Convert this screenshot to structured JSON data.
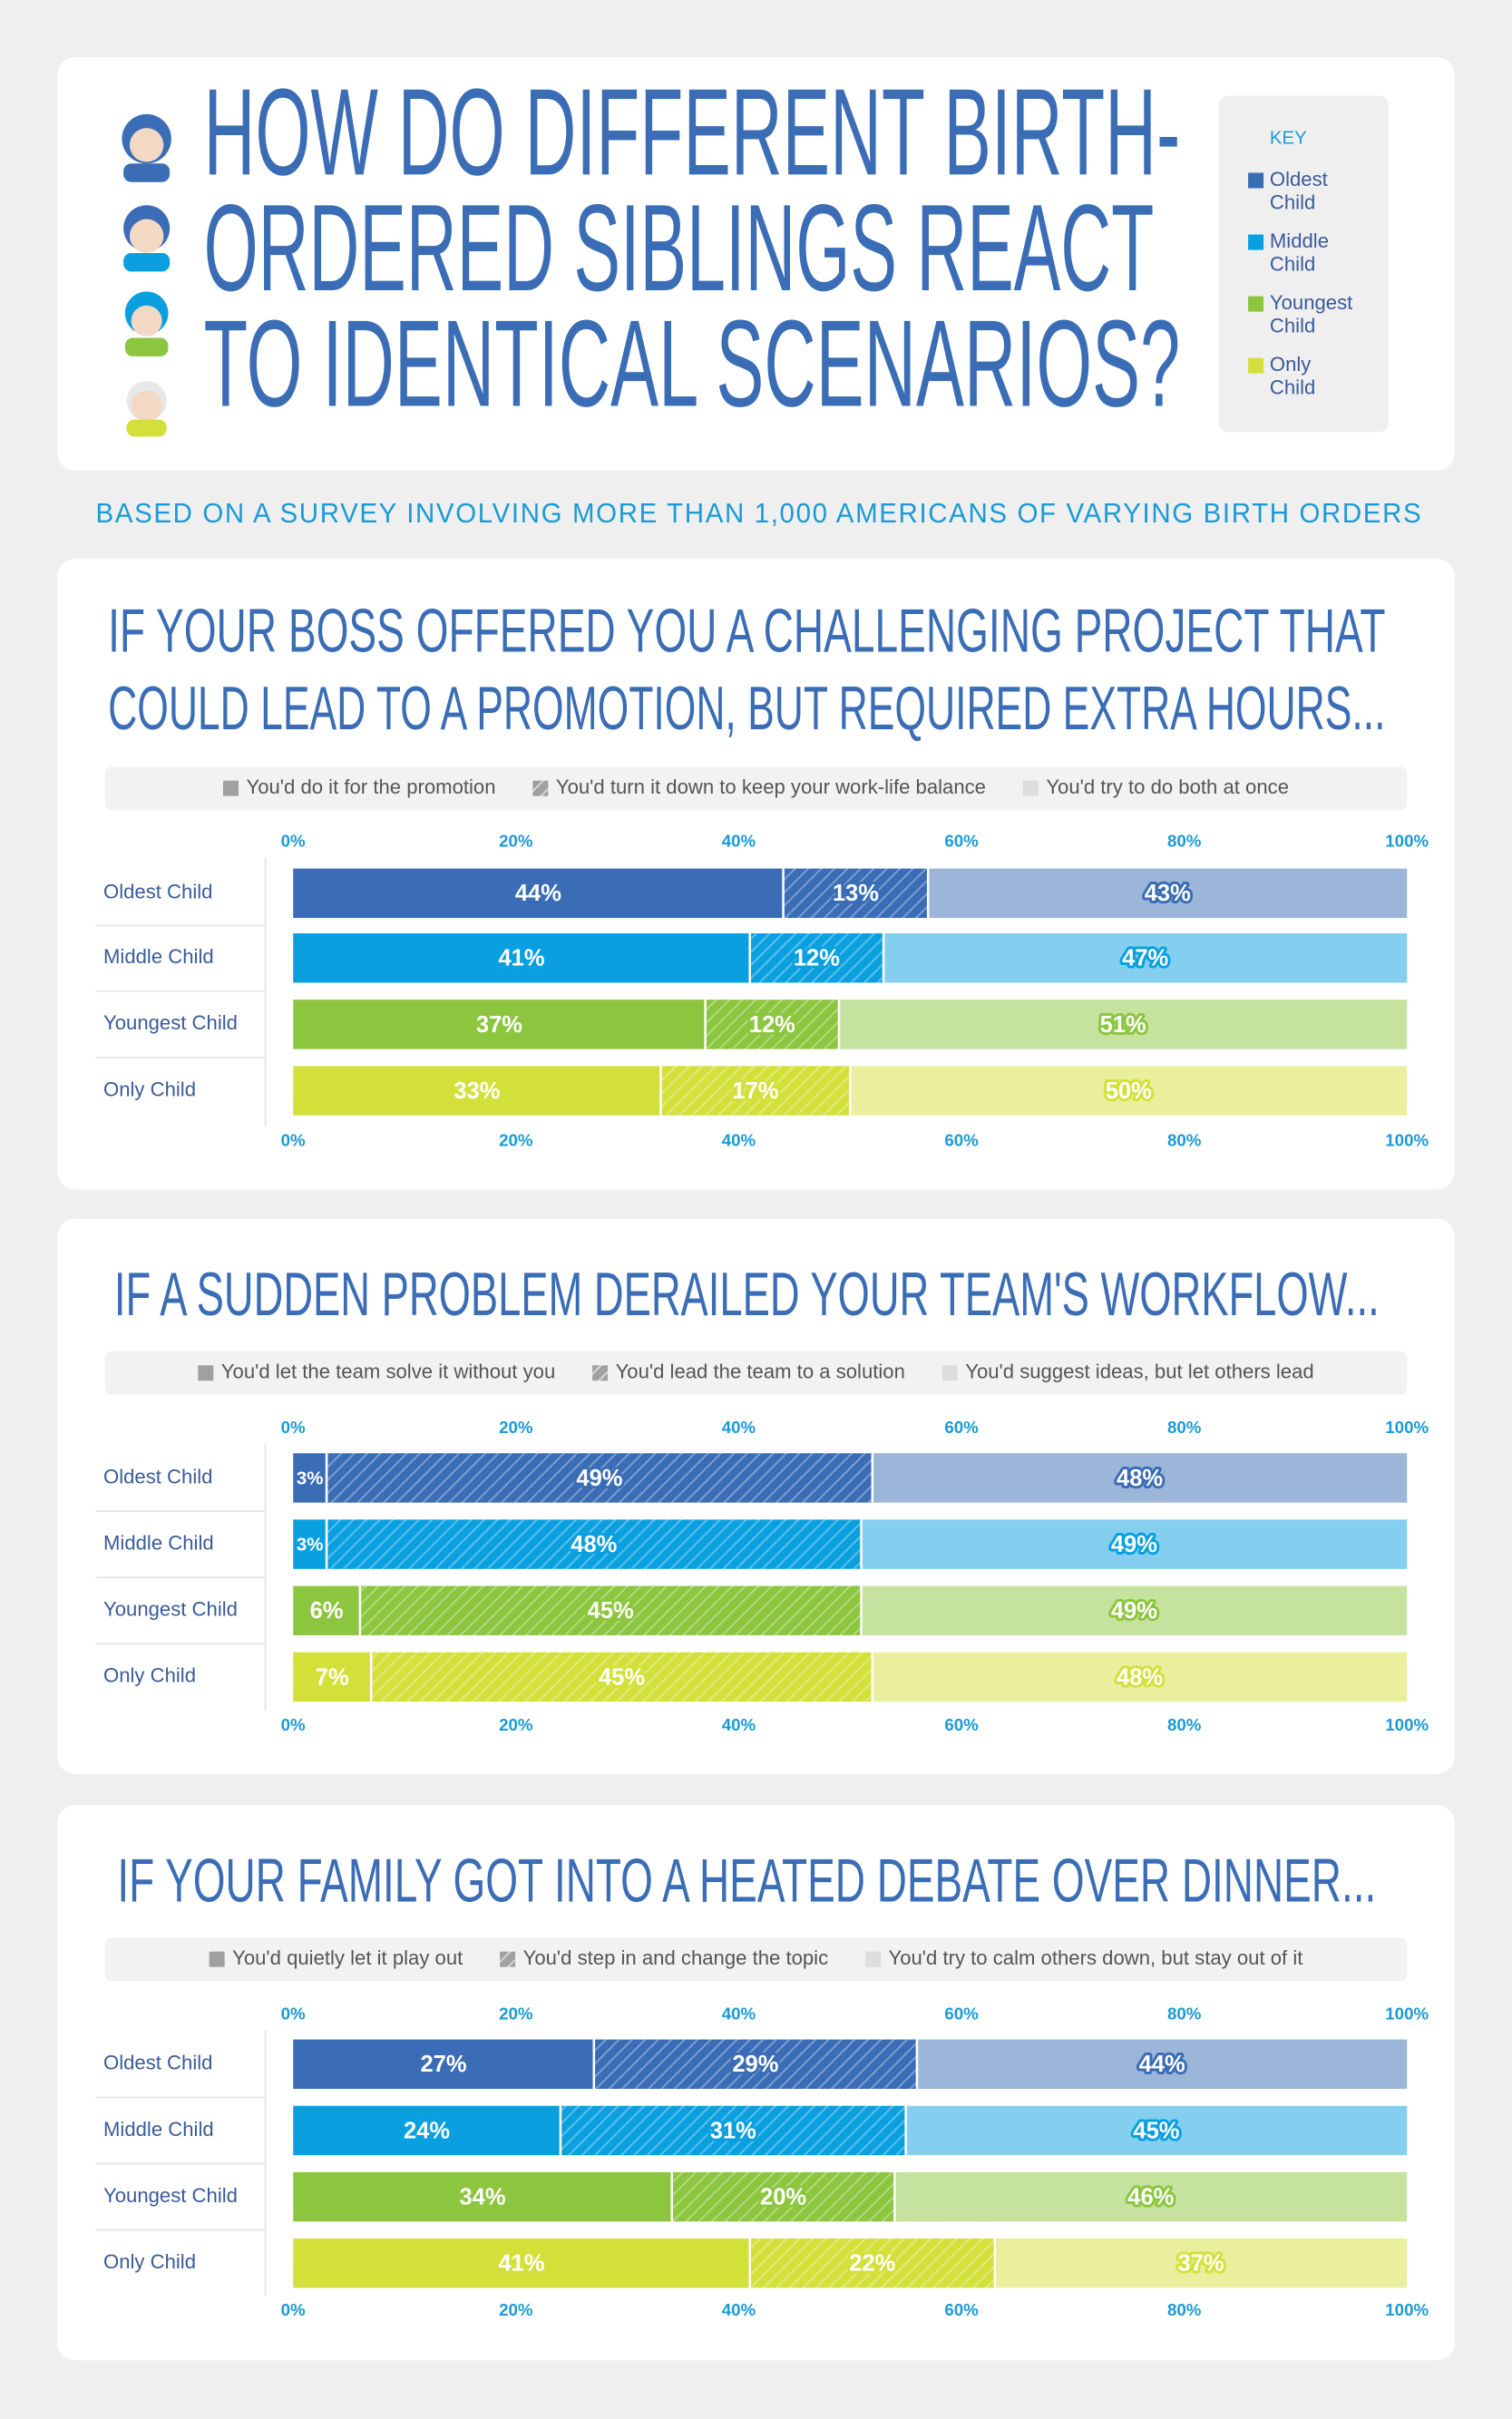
{
  "header": {
    "title": [
      "HOW DO DIFFERENT BIRTH-",
      "ORDERED SIBLINGS REACT",
      "TO IDENTICAL SCENARIOS?"
    ],
    "key_title": "KEY",
    "key": [
      {
        "lines": [
          "Oldest",
          "Child"
        ],
        "color": "#3a6db5"
      },
      {
        "lines": [
          "Middle",
          "Child"
        ],
        "color": "#0aa0e0"
      },
      {
        "lines": [
          "Youngest",
          "Child"
        ],
        "color": "#8cc63f"
      },
      {
        "lines": [
          "Only",
          "Child"
        ],
        "color": "#d4e03a"
      }
    ],
    "subtitle": "BASED ON A SURVEY INVOLVING MORE THAN 1,000 AMERICANS OF VARYING BIRTH ORDERS"
  },
  "chart_data": [
    {
      "type": "bar",
      "stacked": true,
      "orientation": "horizontal",
      "title": [
        "IF YOUR BOSS OFFERED YOU A CHALLENGING PROJECT THAT",
        "COULD LEAD TO A PROMOTION, BUT REQUIRED EXTRA HOURS..."
      ],
      "categories": [
        "Oldest Child",
        "Middle Child",
        "Youngest Child",
        "Only Child"
      ],
      "category_colors": [
        "#3a6db5",
        "#0aa0e0",
        "#8cc63f",
        "#d4e03a"
      ],
      "series": [
        {
          "name": "You'd do it for the promotion",
          "style": "solid",
          "color": "#a0a0a0",
          "values": [
            44,
            41,
            37,
            33
          ],
          "value_labels": [
            "44%",
            "41%",
            "37%",
            "33%"
          ]
        },
        {
          "name": "You'd turn it down to keep your work-life balance",
          "style": "hatch",
          "color": "#a0a0a0",
          "values": [
            13,
            12,
            12,
            17
          ],
          "value_labels": [
            "13%",
            "12%",
            "12%",
            "17%"
          ]
        },
        {
          "name": "You'd try to do both at once",
          "style": "light",
          "color": "#dddddd",
          "values": [
            43,
            47,
            51,
            50
          ],
          "value_labels": [
            "43%",
            "47%",
            "51%",
            "50%"
          ]
        }
      ],
      "xlim": [
        0,
        100
      ],
      "xticks": [
        {
          "value": 0,
          "label": "0%"
        },
        {
          "value": 20,
          "label": "20%"
        },
        {
          "value": 40,
          "label": "40%"
        },
        {
          "value": 60,
          "label": "60%"
        },
        {
          "value": 80,
          "label": "80%"
        },
        {
          "value": 100,
          "label": "100%"
        }
      ]
    },
    {
      "type": "bar",
      "stacked": true,
      "orientation": "horizontal",
      "title": [
        "IF A SUDDEN PROBLEM DERAILED YOUR TEAM'S WORKFLOW..."
      ],
      "categories": [
        "Oldest Child",
        "Middle Child",
        "Youngest Child",
        "Only Child"
      ],
      "category_colors": [
        "#3a6db5",
        "#0aa0e0",
        "#8cc63f",
        "#d4e03a"
      ],
      "series": [
        {
          "name": "You'd let the team solve it without you",
          "style": "solid",
          "color": "#a0a0a0",
          "values": [
            3,
            3,
            6,
            7
          ],
          "value_labels": [
            "3%",
            "3%",
            "6%",
            "7%"
          ]
        },
        {
          "name": "You'd lead the team to a solution",
          "style": "hatch",
          "color": "#a0a0a0",
          "values": [
            49,
            48,
            45,
            45
          ],
          "value_labels": [
            "49%",
            "48%",
            "45%",
            "45%"
          ]
        },
        {
          "name": "You'd suggest ideas, but let others lead",
          "style": "light",
          "color": "#dddddd",
          "values": [
            48,
            49,
            49,
            48
          ],
          "value_labels": [
            "48%",
            "49%",
            "49%",
            "48%"
          ]
        }
      ],
      "xlim": [
        0,
        100
      ],
      "xticks": [
        {
          "value": 0,
          "label": "0%"
        },
        {
          "value": 20,
          "label": "20%"
        },
        {
          "value": 40,
          "label": "40%"
        },
        {
          "value": 60,
          "label": "60%"
        },
        {
          "value": 80,
          "label": "80%"
        },
        {
          "value": 100,
          "label": "100%"
        }
      ]
    },
    {
      "type": "bar",
      "stacked": true,
      "orientation": "horizontal",
      "title": [
        "IF YOUR FAMILY GOT INTO A HEATED DEBATE OVER DINNER..."
      ],
      "categories": [
        "Oldest Child",
        "Middle Child",
        "Youngest Child",
        "Only Child"
      ],
      "category_colors": [
        "#3a6db5",
        "#0aa0e0",
        "#8cc63f",
        "#d4e03a"
      ],
      "series": [
        {
          "name": "You'd quietly let it play out",
          "style": "solid",
          "color": "#a0a0a0",
          "values": [
            27,
            24,
            34,
            41
          ],
          "value_labels": [
            "27%",
            "24%",
            "34%",
            "41%"
          ]
        },
        {
          "name": "You'd step in and change the topic",
          "style": "hatch",
          "color": "#a0a0a0",
          "values": [
            29,
            31,
            20,
            22
          ],
          "value_labels": [
            "29%",
            "31%",
            "20%",
            "22%"
          ]
        },
        {
          "name": "You'd try to calm others down, but stay out of it",
          "style": "light",
          "color": "#dddddd",
          "values": [
            44,
            45,
            46,
            37
          ],
          "value_labels": [
            "44%",
            "45%",
            "46%",
            "37%"
          ]
        }
      ],
      "xlim": [
        0,
        100
      ],
      "xticks": [
        {
          "value": 0,
          "label": "0%"
        },
        {
          "value": 20,
          "label": "20%"
        },
        {
          "value": 40,
          "label": "40%"
        },
        {
          "value": 60,
          "label": "60%"
        },
        {
          "value": 80,
          "label": "80%"
        },
        {
          "value": 100,
          "label": "100%"
        }
      ]
    }
  ]
}
